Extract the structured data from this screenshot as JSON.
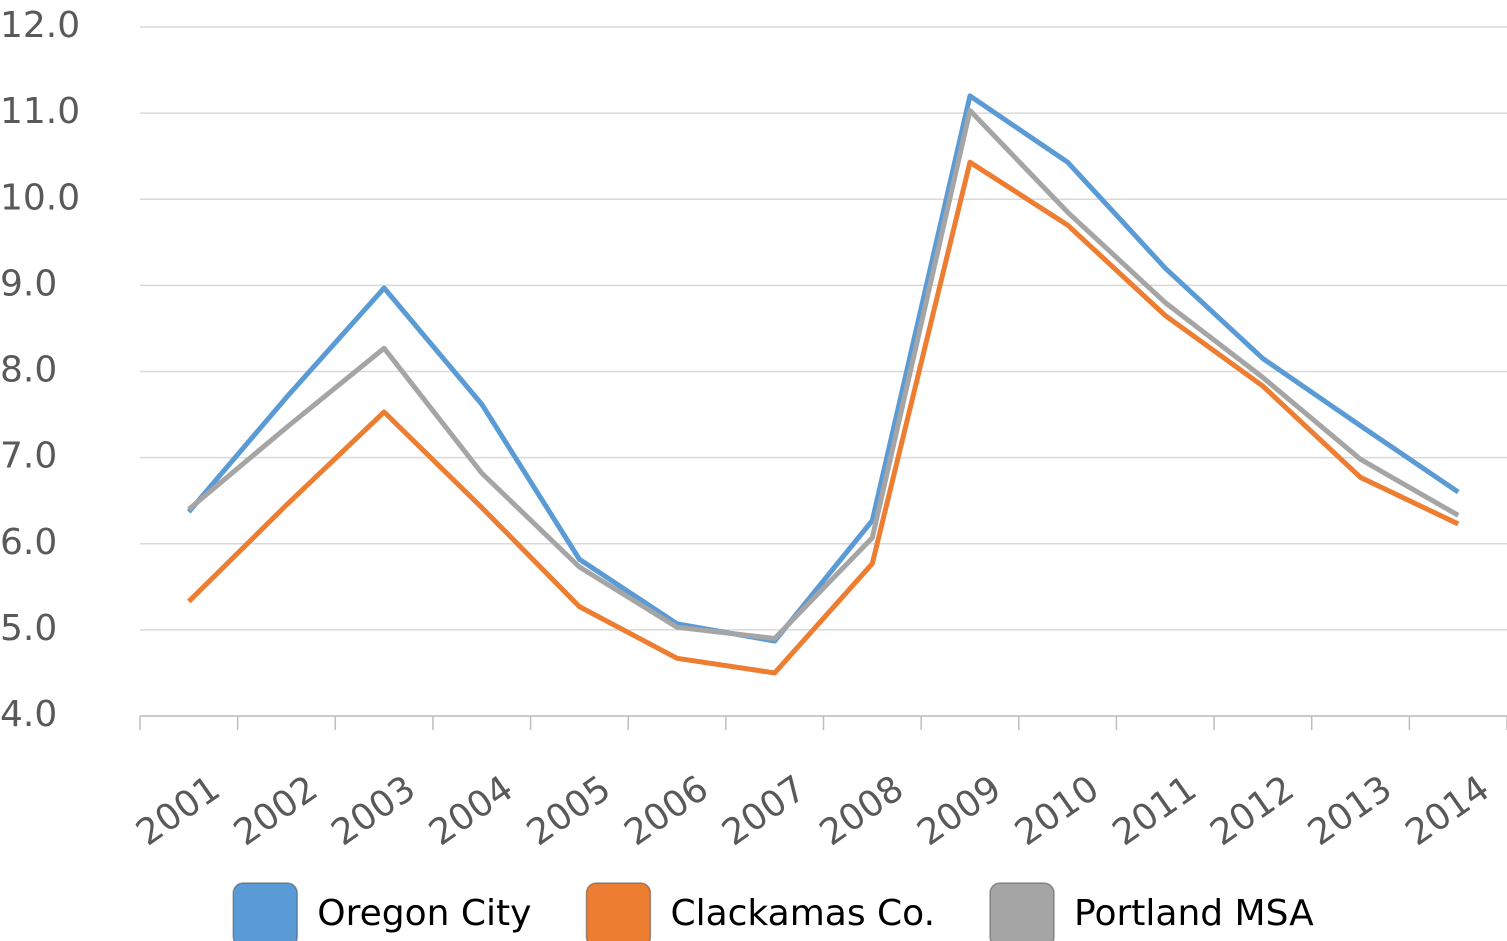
{
  "chart_data": {
    "type": "line",
    "categories": [
      "2001",
      "2002",
      "2003",
      "2004",
      "2005",
      "2006",
      "2007",
      "2008",
      "2009",
      "2010",
      "2011",
      "2012",
      "2013",
      "2014"
    ],
    "series": [
      {
        "name": "Oregon City",
        "color": "#5b9bd5",
        "values": [
          6.37,
          7.7,
          8.97,
          7.62,
          5.82,
          5.07,
          4.87,
          6.27,
          11.2,
          10.43,
          9.2,
          8.15,
          7.37,
          6.6
        ]
      },
      {
        "name": "Clackamas Co.",
        "color": "#ed7d31",
        "values": [
          5.33,
          6.45,
          7.53,
          6.42,
          5.27,
          4.67,
          4.5,
          5.77,
          10.43,
          9.7,
          8.65,
          7.83,
          6.77,
          6.23
        ]
      },
      {
        "name": "Portland MSA",
        "color": "#a5a5a5",
        "values": [
          6.4,
          7.35,
          8.27,
          6.82,
          5.73,
          5.03,
          4.9,
          6.07,
          11.03,
          9.85,
          8.8,
          7.93,
          6.98,
          6.33
        ]
      }
    ],
    "ylim": [
      4,
      12
    ],
    "yticks": [
      {
        "value": 4,
        "label": "4.0"
      },
      {
        "value": 5,
        "label": "5.0"
      },
      {
        "value": 6,
        "label": "6.0"
      },
      {
        "value": 7,
        "label": "7.0"
      },
      {
        "value": 8,
        "label": "8.0"
      },
      {
        "value": 9,
        "label": "9.0"
      },
      {
        "value": 10,
        "label": "10.0"
      },
      {
        "value": 11,
        "label": "11.0"
      },
      {
        "value": 12,
        "label": "12.0"
      }
    ],
    "grid": true,
    "legend": "bottom"
  }
}
